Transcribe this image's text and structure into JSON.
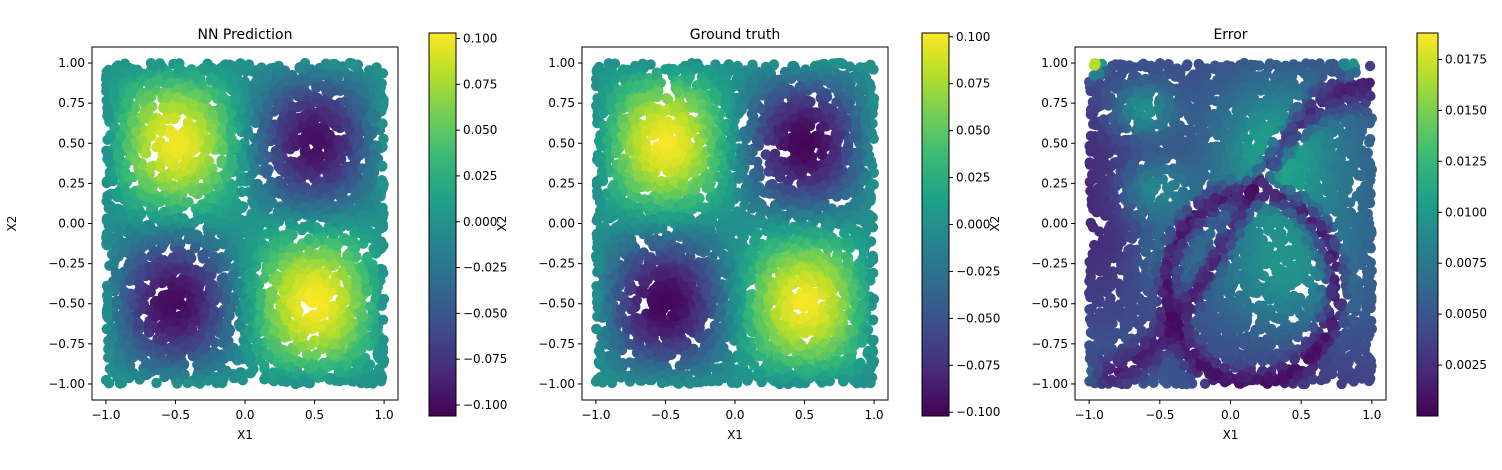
{
  "chart_data": [
    {
      "type": "heatmap",
      "title": "NN Prediction",
      "xlabel": "X1",
      "ylabel": "X2",
      "xlim": [
        -1.1,
        1.1
      ],
      "ylim": [
        -1.1,
        1.1
      ],
      "xticks": [
        "-1.0",
        "-0.5",
        "0.0",
        "0.5",
        "1.0"
      ],
      "yticks": [
        "-1.00",
        "-0.75",
        "-0.50",
        "-0.25",
        "0.00",
        "0.25",
        "0.50",
        "0.75",
        "1.00"
      ],
      "colormap": "viridis",
      "colorbar": {
        "min": -0.106,
        "max": 0.103,
        "ticks": [
          "0.100",
          "0.075",
          "0.050",
          "0.025",
          "0.000",
          "−0.025",
          "−0.050",
          "−0.075",
          "−0.100"
        ]
      },
      "field": "-0.1*sin(pi*x1)*sin(pi*x2) with small network error"
    },
    {
      "type": "heatmap",
      "title": "Ground truth",
      "xlabel": "X1",
      "ylabel": "X2",
      "xlim": [
        -1.1,
        1.1
      ],
      "ylim": [
        -1.1,
        1.1
      ],
      "xticks": [
        "-1.0",
        "-0.5",
        "0.0",
        "0.5",
        "1.0"
      ],
      "yticks": [
        "-1.00",
        "-0.75",
        "-0.50",
        "-0.25",
        "0.00",
        "0.25",
        "0.50",
        "0.75",
        "1.00"
      ],
      "colormap": "viridis",
      "colorbar": {
        "min": -0.102,
        "max": 0.102,
        "ticks": [
          "0.100",
          "0.075",
          "0.050",
          "0.025",
          "0.000",
          "−0.025",
          "−0.050",
          "−0.075",
          "−0.100"
        ]
      },
      "field": "-0.1*sin(pi*x1)*sin(pi*x2)"
    },
    {
      "type": "heatmap",
      "title": "Error",
      "xlabel": "X1",
      "ylabel": "X2",
      "xlim": [
        -1.1,
        1.1
      ],
      "ylim": [
        -1.1,
        1.1
      ],
      "xticks": [
        "-1.0",
        "-0.5",
        "0.0",
        "0.5",
        "1.0"
      ],
      "yticks": [
        "-1.00",
        "-0.75",
        "-0.50",
        "-0.25",
        "0.00",
        "0.25",
        "0.50",
        "0.75",
        "1.00"
      ],
      "colormap": "viridis",
      "colorbar": {
        "min": 0.0,
        "max": 0.0188,
        "ticks": [
          "0.0175",
          "0.0150",
          "0.0125",
          "0.0100",
          "0.0075",
          "0.0050",
          "0.0025"
        ]
      },
      "field": "absolute difference between NN prediction and ground truth"
    }
  ]
}
